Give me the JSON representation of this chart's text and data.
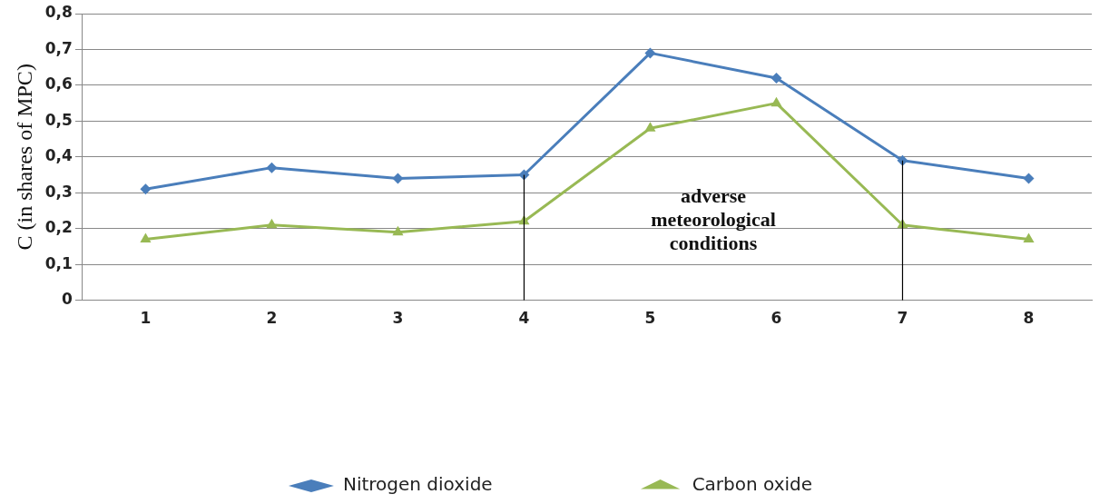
{
  "chart_data": {
    "type": "line",
    "ylabel": "C (in shares of MPC)",
    "categories": [
      "1",
      "2",
      "3",
      "4",
      "5",
      "6",
      "7",
      "8"
    ],
    "series": [
      {
        "name": "Nitrogen dioxide",
        "color": "#4a7ebb",
        "marker": "diamond",
        "values": [
          0.31,
          0.37,
          0.34,
          0.35,
          0.69,
          0.62,
          0.39,
          0.34
        ]
      },
      {
        "name": "Carbon oxide",
        "color": "#98b954",
        "marker": "triangle",
        "values": [
          0.17,
          0.21,
          0.19,
          0.22,
          0.48,
          0.55,
          0.21,
          0.17
        ]
      }
    ],
    "ylim": [
      0,
      0.8
    ],
    "yticks": [
      0,
      {
        "value": 0.1,
        "label": "0,1"
      },
      {
        "value": 0.2,
        "label": "0,2"
      },
      {
        "value": 0.3,
        "label": "0,3"
      },
      {
        "value": 0.4,
        "label": "0,4"
      },
      {
        "value": 0.5,
        "label": "0,5"
      },
      {
        "value": 0.6,
        "label": "0,6"
      },
      {
        "value": 0.7,
        "label": "0,7"
      },
      {
        "value": 0.8,
        "label": "0,8"
      }
    ],
    "grid": "y",
    "legend": "bottom",
    "line_style": "solid",
    "ref_lines": [
      {
        "axis": "x",
        "value": "4",
        "color": "#000000"
      },
      {
        "axis": "x",
        "value": "7",
        "color": "#000000"
      }
    ],
    "annotations": [
      "adverse\nmeteorological\nconditions"
    ]
  }
}
